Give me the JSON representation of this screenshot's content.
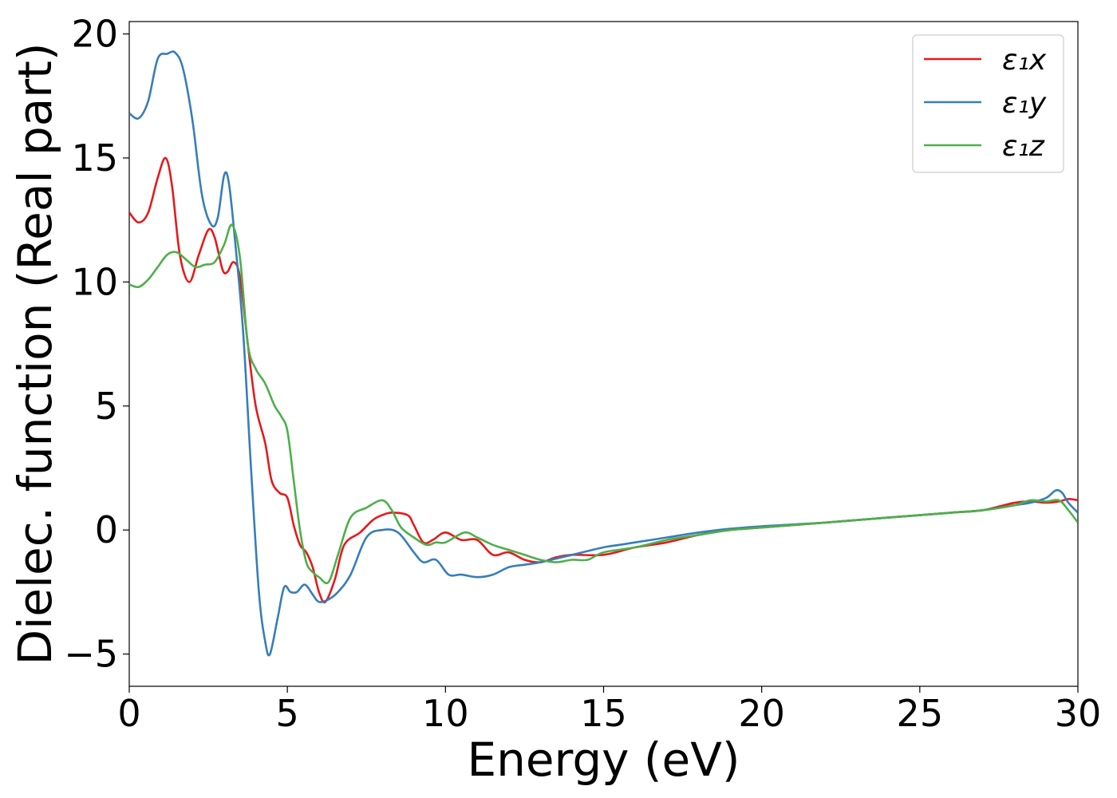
{
  "chart_data": {
    "type": "line",
    "xlabel": "Energy (eV)",
    "ylabel": "Dielec. function (Real part)",
    "xlim": [
      0,
      30
    ],
    "ylim": [
      -6.3,
      20.5
    ],
    "xticks": [
      0,
      5,
      10,
      15,
      20,
      25,
      30
    ],
    "xtick_labels": [
      "0",
      "5",
      "10",
      "15",
      "20",
      "25",
      "30"
    ],
    "yticks": [
      -5,
      0,
      5,
      10,
      15,
      20
    ],
    "ytick_labels": [
      "−5",
      "0",
      "5",
      "10",
      "15",
      "20"
    ],
    "grid": false,
    "legend_position": "top-right",
    "series": [
      {
        "name": "ε₁x",
        "color": "#e41a1c",
        "points": [
          [
            0,
            12.8
          ],
          [
            0.3,
            12.4
          ],
          [
            0.6,
            12.8
          ],
          [
            0.9,
            14.2
          ],
          [
            1.15,
            15.0
          ],
          [
            1.35,
            13.9
          ],
          [
            1.6,
            11.1
          ],
          [
            1.9,
            10.0
          ],
          [
            2.2,
            11.1
          ],
          [
            2.5,
            12.1
          ],
          [
            2.7,
            11.8
          ],
          [
            2.95,
            10.5
          ],
          [
            3.1,
            10.4
          ],
          [
            3.3,
            10.8
          ],
          [
            3.5,
            10.2
          ],
          [
            3.75,
            7.5
          ],
          [
            4.0,
            5.0
          ],
          [
            4.3,
            3.5
          ],
          [
            4.5,
            2.0
          ],
          [
            4.75,
            1.5
          ],
          [
            5.0,
            1.3
          ],
          [
            5.2,
            0.2
          ],
          [
            5.4,
            -0.6
          ],
          [
            5.6,
            -0.9
          ],
          [
            5.8,
            -1.5
          ],
          [
            6.0,
            -2.5
          ],
          [
            6.2,
            -2.9
          ],
          [
            6.5,
            -2.0
          ],
          [
            6.8,
            -0.6
          ],
          [
            7.3,
            -0.1
          ],
          [
            7.7,
            0.4
          ],
          [
            8.0,
            0.6
          ],
          [
            8.3,
            0.7
          ],
          [
            8.8,
            0.6
          ],
          [
            9.0,
            0.2
          ],
          [
            9.3,
            -0.5
          ],
          [
            9.6,
            -0.4
          ],
          [
            10.0,
            -0.1
          ],
          [
            10.5,
            -0.4
          ],
          [
            11.0,
            -0.4
          ],
          [
            11.5,
            -1.0
          ],
          [
            12.0,
            -0.9
          ],
          [
            12.5,
            -1.2
          ],
          [
            13.0,
            -1.3
          ],
          [
            13.5,
            -1.1
          ],
          [
            14.0,
            -1.0
          ],
          [
            15.0,
            -1.0
          ],
          [
            16.0,
            -0.7
          ],
          [
            17.0,
            -0.5
          ],
          [
            18.0,
            -0.2
          ],
          [
            19.0,
            0.0
          ],
          [
            20.0,
            0.1
          ],
          [
            22.0,
            0.3
          ],
          [
            24.0,
            0.5
          ],
          [
            26.0,
            0.7
          ],
          [
            27.0,
            0.8
          ],
          [
            28.0,
            1.1
          ],
          [
            28.5,
            1.15
          ],
          [
            29.0,
            1.1
          ],
          [
            29.4,
            1.15
          ],
          [
            29.7,
            1.25
          ],
          [
            30.0,
            1.2
          ]
        ]
      },
      {
        "name": "ε₁y",
        "color": "#377eb8",
        "points": [
          [
            0,
            16.8
          ],
          [
            0.3,
            16.6
          ],
          [
            0.6,
            17.3
          ],
          [
            0.9,
            19.0
          ],
          [
            1.2,
            19.2
          ],
          [
            1.45,
            19.25
          ],
          [
            1.7,
            18.6
          ],
          [
            2.0,
            16.5
          ],
          [
            2.3,
            13.5
          ],
          [
            2.6,
            12.3
          ],
          [
            2.8,
            12.6
          ],
          [
            3.0,
            14.3
          ],
          [
            3.15,
            14.0
          ],
          [
            3.35,
            11.6
          ],
          [
            3.6,
            8.0
          ],
          [
            3.85,
            2.5
          ],
          [
            4.1,
            -2.5
          ],
          [
            4.3,
            -4.5
          ],
          [
            4.45,
            -5.0
          ],
          [
            4.7,
            -3.5
          ],
          [
            4.9,
            -2.3
          ],
          [
            5.1,
            -2.5
          ],
          [
            5.3,
            -2.5
          ],
          [
            5.55,
            -2.2
          ],
          [
            5.8,
            -2.6
          ],
          [
            6.0,
            -2.9
          ],
          [
            6.3,
            -2.8
          ],
          [
            6.6,
            -2.5
          ],
          [
            7.0,
            -1.8
          ],
          [
            7.5,
            -0.3
          ],
          [
            8.0,
            0.0
          ],
          [
            8.5,
            -0.1
          ],
          [
            9.0,
            -0.9
          ],
          [
            9.3,
            -1.3
          ],
          [
            9.7,
            -1.2
          ],
          [
            10.1,
            -1.8
          ],
          [
            10.5,
            -1.8
          ],
          [
            11.0,
            -1.9
          ],
          [
            11.5,
            -1.8
          ],
          [
            12.0,
            -1.5
          ],
          [
            12.5,
            -1.4
          ],
          [
            13.0,
            -1.3
          ],
          [
            14.0,
            -1.0
          ],
          [
            15.0,
            -0.7
          ],
          [
            15.5,
            -0.6
          ],
          [
            16.0,
            -0.5
          ],
          [
            17.0,
            -0.3
          ],
          [
            18.0,
            -0.1
          ],
          [
            19.0,
            0.05
          ],
          [
            20.0,
            0.15
          ],
          [
            22.0,
            0.3
          ],
          [
            24.0,
            0.5
          ],
          [
            26.0,
            0.7
          ],
          [
            27.0,
            0.8
          ],
          [
            28.0,
            1.0
          ],
          [
            28.5,
            1.1
          ],
          [
            29.0,
            1.3
          ],
          [
            29.3,
            1.6
          ],
          [
            29.5,
            1.5
          ],
          [
            29.7,
            1.1
          ],
          [
            30.0,
            0.7
          ]
        ]
      },
      {
        "name": "ε₁z",
        "color": "#4daf4a",
        "points": [
          [
            0,
            9.9
          ],
          [
            0.3,
            9.8
          ],
          [
            0.6,
            10.1
          ],
          [
            0.9,
            10.6
          ],
          [
            1.2,
            11.1
          ],
          [
            1.5,
            11.2
          ],
          [
            1.8,
            10.9
          ],
          [
            2.1,
            10.6
          ],
          [
            2.4,
            10.7
          ],
          [
            2.7,
            10.8
          ],
          [
            3.0,
            11.5
          ],
          [
            3.25,
            12.3
          ],
          [
            3.5,
            11.0
          ],
          [
            3.75,
            7.5
          ],
          [
            4.0,
            6.5
          ],
          [
            4.3,
            5.9
          ],
          [
            4.6,
            5.0
          ],
          [
            4.8,
            4.6
          ],
          [
            5.0,
            4.0
          ],
          [
            5.2,
            2.0
          ],
          [
            5.4,
            0.0
          ],
          [
            5.6,
            -1.3
          ],
          [
            5.8,
            -1.7
          ],
          [
            6.0,
            -1.9
          ],
          [
            6.3,
            -2.1
          ],
          [
            6.6,
            -1.0
          ],
          [
            7.0,
            0.5
          ],
          [
            7.5,
            0.9
          ],
          [
            8.0,
            1.2
          ],
          [
            8.3,
            0.8
          ],
          [
            8.6,
            0.1
          ],
          [
            9.0,
            -0.3
          ],
          [
            9.4,
            -0.6
          ],
          [
            9.7,
            -0.5
          ],
          [
            10.0,
            -0.5
          ],
          [
            10.6,
            -0.1
          ],
          [
            11.0,
            -0.3
          ],
          [
            11.5,
            -0.6
          ],
          [
            12.0,
            -0.8
          ],
          [
            12.5,
            -1.0
          ],
          [
            13.0,
            -1.2
          ],
          [
            13.5,
            -1.3
          ],
          [
            14.0,
            -1.2
          ],
          [
            14.5,
            -1.2
          ],
          [
            15.0,
            -0.9
          ],
          [
            16.0,
            -0.7
          ],
          [
            17.0,
            -0.4
          ],
          [
            18.0,
            -0.2
          ],
          [
            19.0,
            0.0
          ],
          [
            20.0,
            0.1
          ],
          [
            22.0,
            0.3
          ],
          [
            24.0,
            0.5
          ],
          [
            26.0,
            0.7
          ],
          [
            27.0,
            0.8
          ],
          [
            28.0,
            1.0
          ],
          [
            28.5,
            1.2
          ],
          [
            29.0,
            1.15
          ],
          [
            29.4,
            1.2
          ],
          [
            29.7,
            0.8
          ],
          [
            30.0,
            0.3
          ]
        ]
      }
    ]
  }
}
